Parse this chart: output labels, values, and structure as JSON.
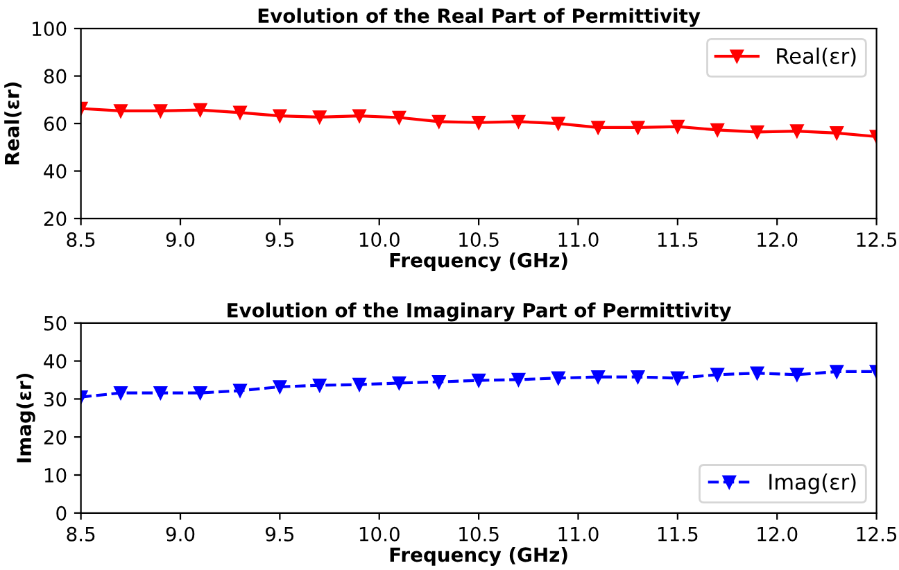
{
  "chart_data": [
    {
      "type": "line",
      "title": "Evolution of the Real Part of Permittivity",
      "xlabel": "Frequency (GHz)",
      "ylabel": "Real(εr)",
      "x": [
        8.5,
        8.7,
        8.9,
        9.1,
        9.3,
        9.5,
        9.7,
        9.9,
        10.1,
        10.3,
        10.5,
        10.7,
        10.9,
        11.1,
        11.3,
        11.5,
        11.7,
        11.9,
        12.1,
        12.3,
        12.5
      ],
      "series": [
        {
          "name": "Real(εr)",
          "color": "#ff0000",
          "values": [
            66.3,
            65.3,
            65.3,
            65.7,
            64.6,
            63.2,
            62.7,
            63.2,
            62.5,
            60.8,
            60.4,
            60.8,
            60.0,
            58.3,
            58.3,
            58.7,
            57.3,
            56.4,
            56.8,
            56.0,
            54.5
          ]
        }
      ],
      "xlim": [
        8.5,
        12.5
      ],
      "xticks": [
        {
          "value": 8.5,
          "label": "8.5"
        },
        {
          "value": 9.0,
          "label": "9.0"
        },
        {
          "value": 9.5,
          "label": "9.5"
        },
        {
          "value": 10.0,
          "label": "10.0"
        },
        {
          "value": 10.5,
          "label": "10.5"
        },
        {
          "value": 11.0,
          "label": "11.0"
        },
        {
          "value": 11.5,
          "label": "11.5"
        },
        {
          "value": 12.0,
          "label": "12.0"
        },
        {
          "value": 12.5,
          "label": "12.5"
        }
      ],
      "ylim": [
        20,
        100
      ],
      "yticks": [
        20,
        40,
        60,
        80,
        100
      ],
      "grid": false,
      "legend": "top right",
      "marker": "triangle",
      "line_style": "solid"
    },
    {
      "type": "line",
      "title": "Evolution of the Imaginary Part of Permittivity",
      "xlabel": "Frequency (GHz)",
      "ylabel": "Imag(εr)",
      "x": [
        8.5,
        8.7,
        8.9,
        9.1,
        9.3,
        9.5,
        9.7,
        9.9,
        10.1,
        10.3,
        10.5,
        10.7,
        10.9,
        11.1,
        11.3,
        11.5,
        11.7,
        11.9,
        12.1,
        12.3,
        12.5
      ],
      "series": [
        {
          "name": "Imag(εr)",
          "color": "#0000ff",
          "values": [
            30.5,
            31.6,
            31.6,
            31.6,
            32.2,
            33.2,
            33.6,
            33.8,
            34.2,
            34.5,
            34.9,
            35.1,
            35.5,
            35.8,
            35.8,
            35.5,
            36.4,
            36.8,
            36.4,
            37.2,
            37.2
          ]
        }
      ],
      "xlim": [
        8.5,
        12.5
      ],
      "xticks": [
        {
          "value": 8.5,
          "label": "8.5"
        },
        {
          "value": 9.0,
          "label": "9.0"
        },
        {
          "value": 9.5,
          "label": "9.5"
        },
        {
          "value": 10.0,
          "label": "10.0"
        },
        {
          "value": 10.5,
          "label": "10.5"
        },
        {
          "value": 11.0,
          "label": "11.0"
        },
        {
          "value": 11.5,
          "label": "11.5"
        },
        {
          "value": 12.0,
          "label": "12.0"
        },
        {
          "value": 12.5,
          "label": "12.5"
        }
      ],
      "ylim": [
        0,
        50
      ],
      "yticks": [
        0,
        10,
        20,
        30,
        40,
        50
      ],
      "grid": false,
      "legend": "bottom right",
      "marker": "triangle",
      "line_style": "dashed"
    }
  ]
}
